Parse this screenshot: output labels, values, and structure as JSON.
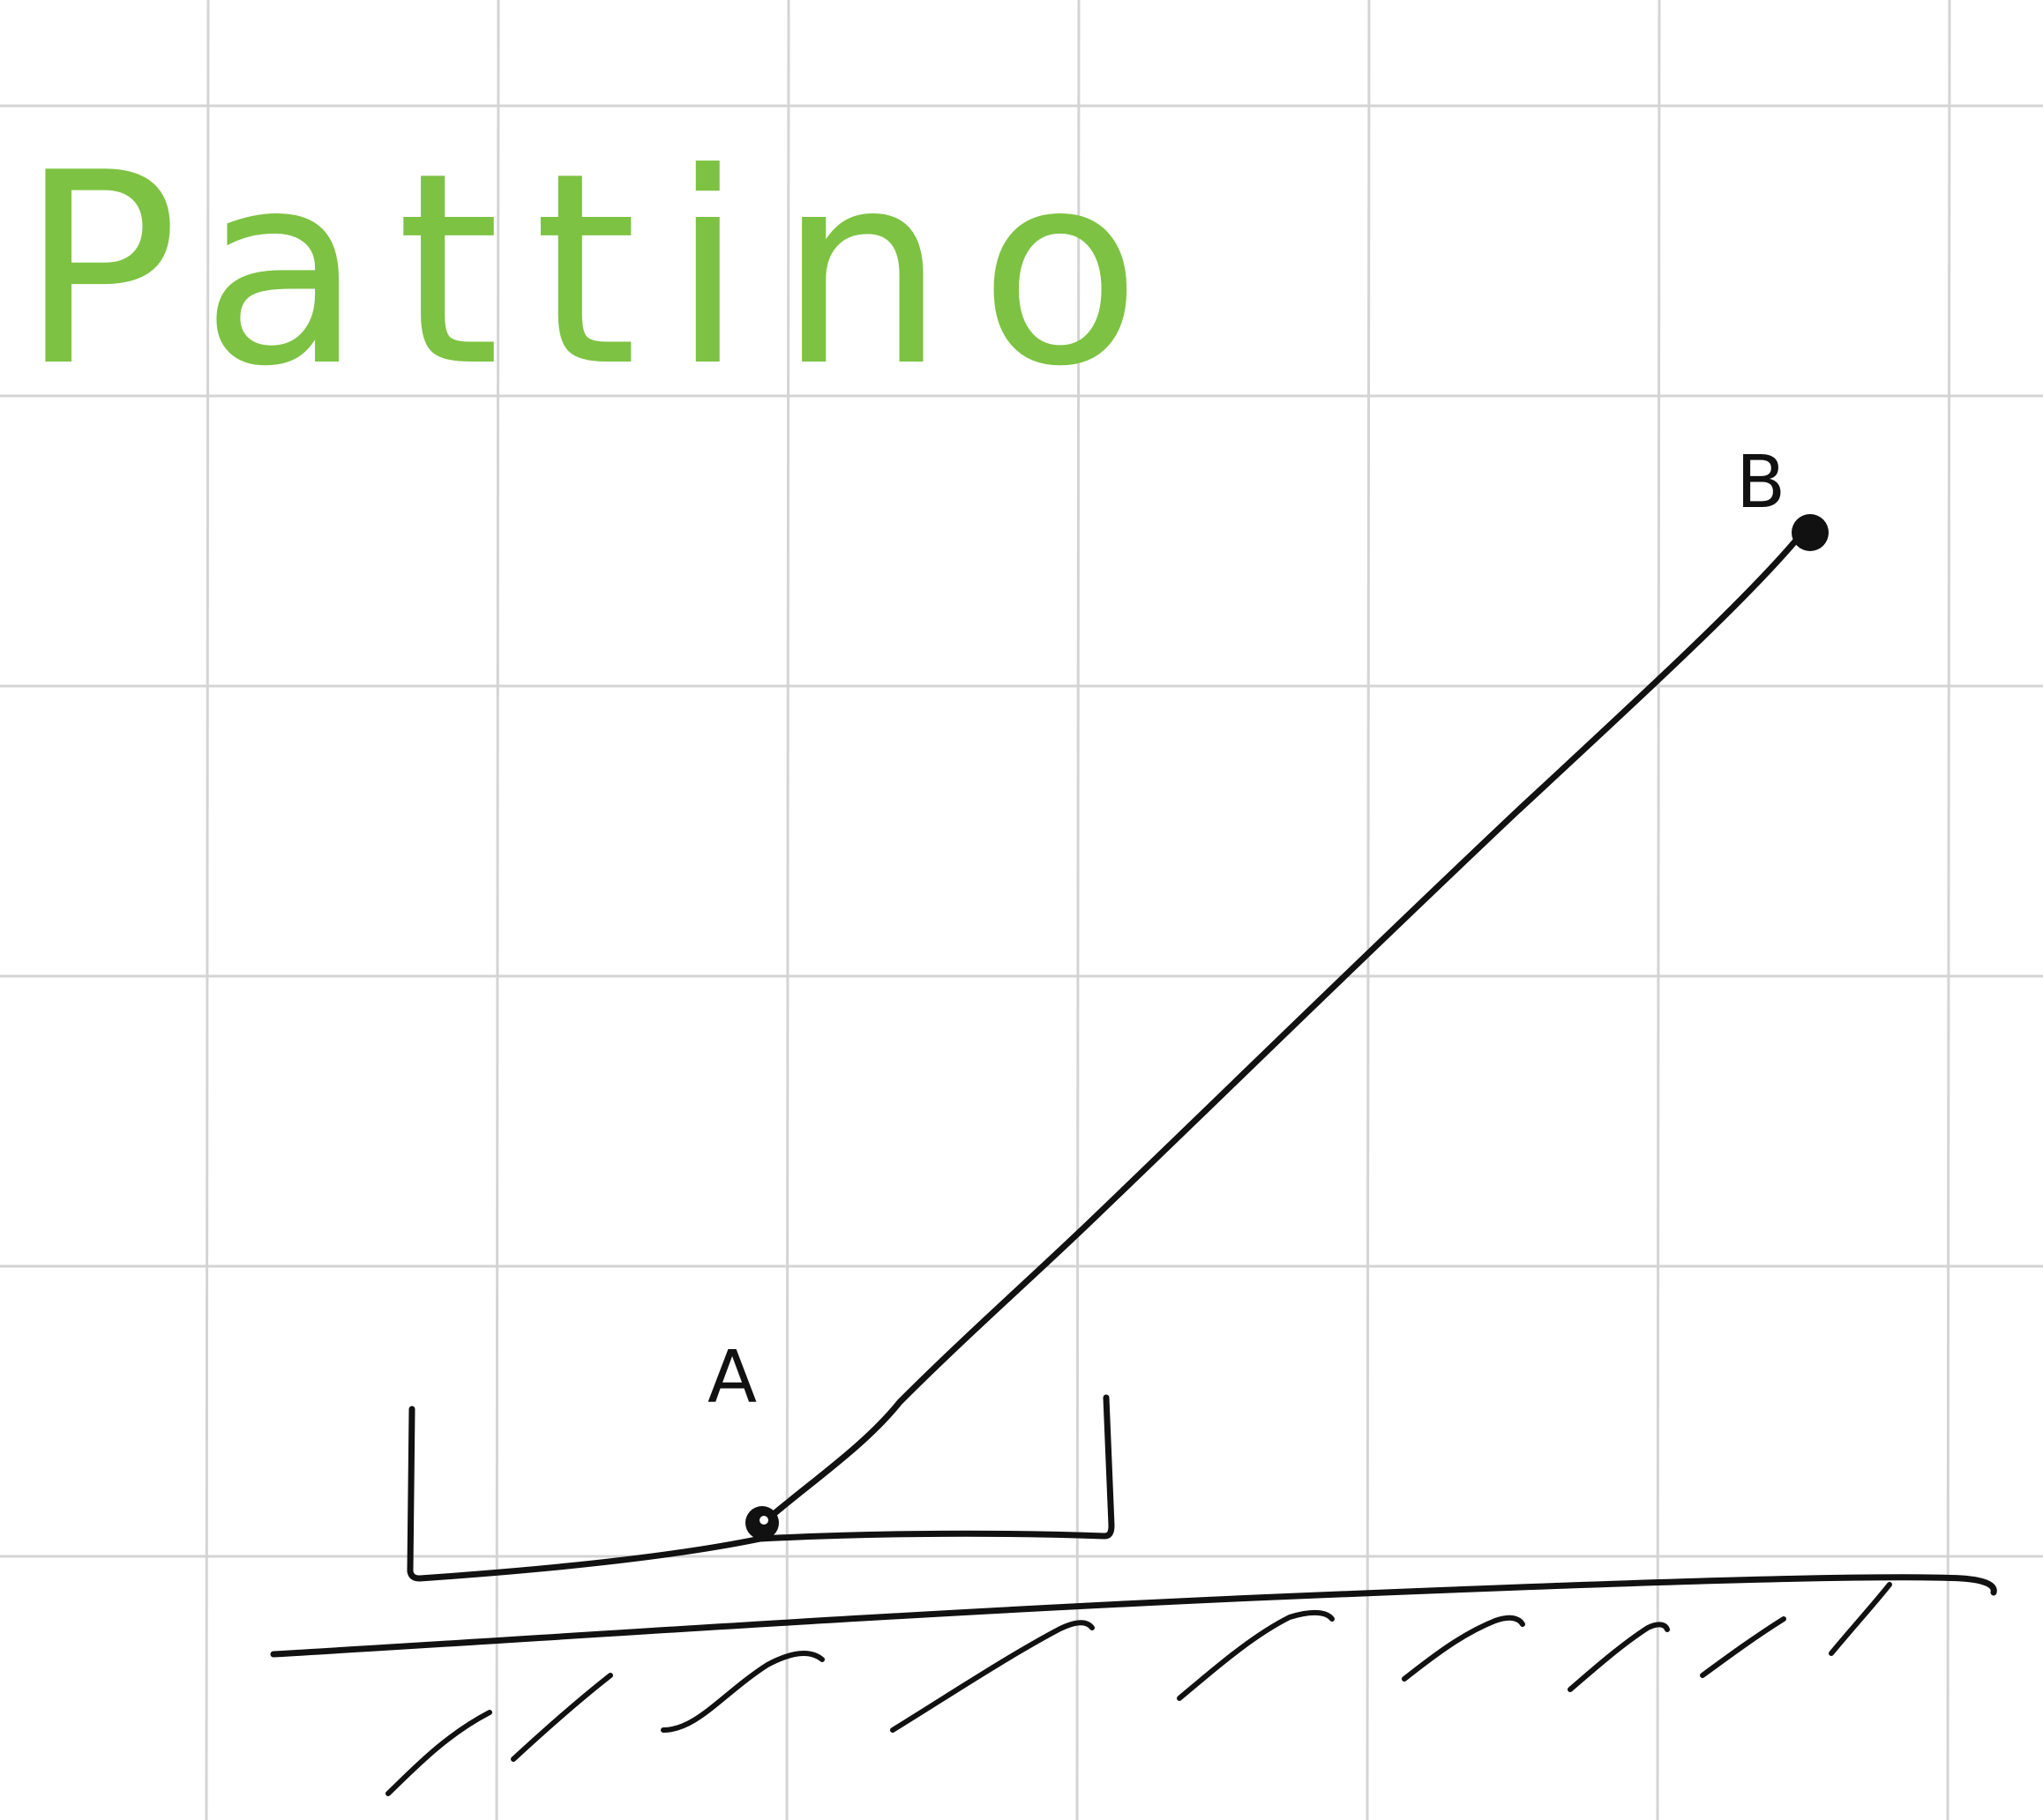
{
  "title": "Pattino",
  "labels": {
    "a": "A",
    "b": "B"
  },
  "colors": {
    "title": "#7dc242",
    "ink": "#111111",
    "grid": "#d4d4d4",
    "background": "#ffffff"
  },
  "grid": true
}
